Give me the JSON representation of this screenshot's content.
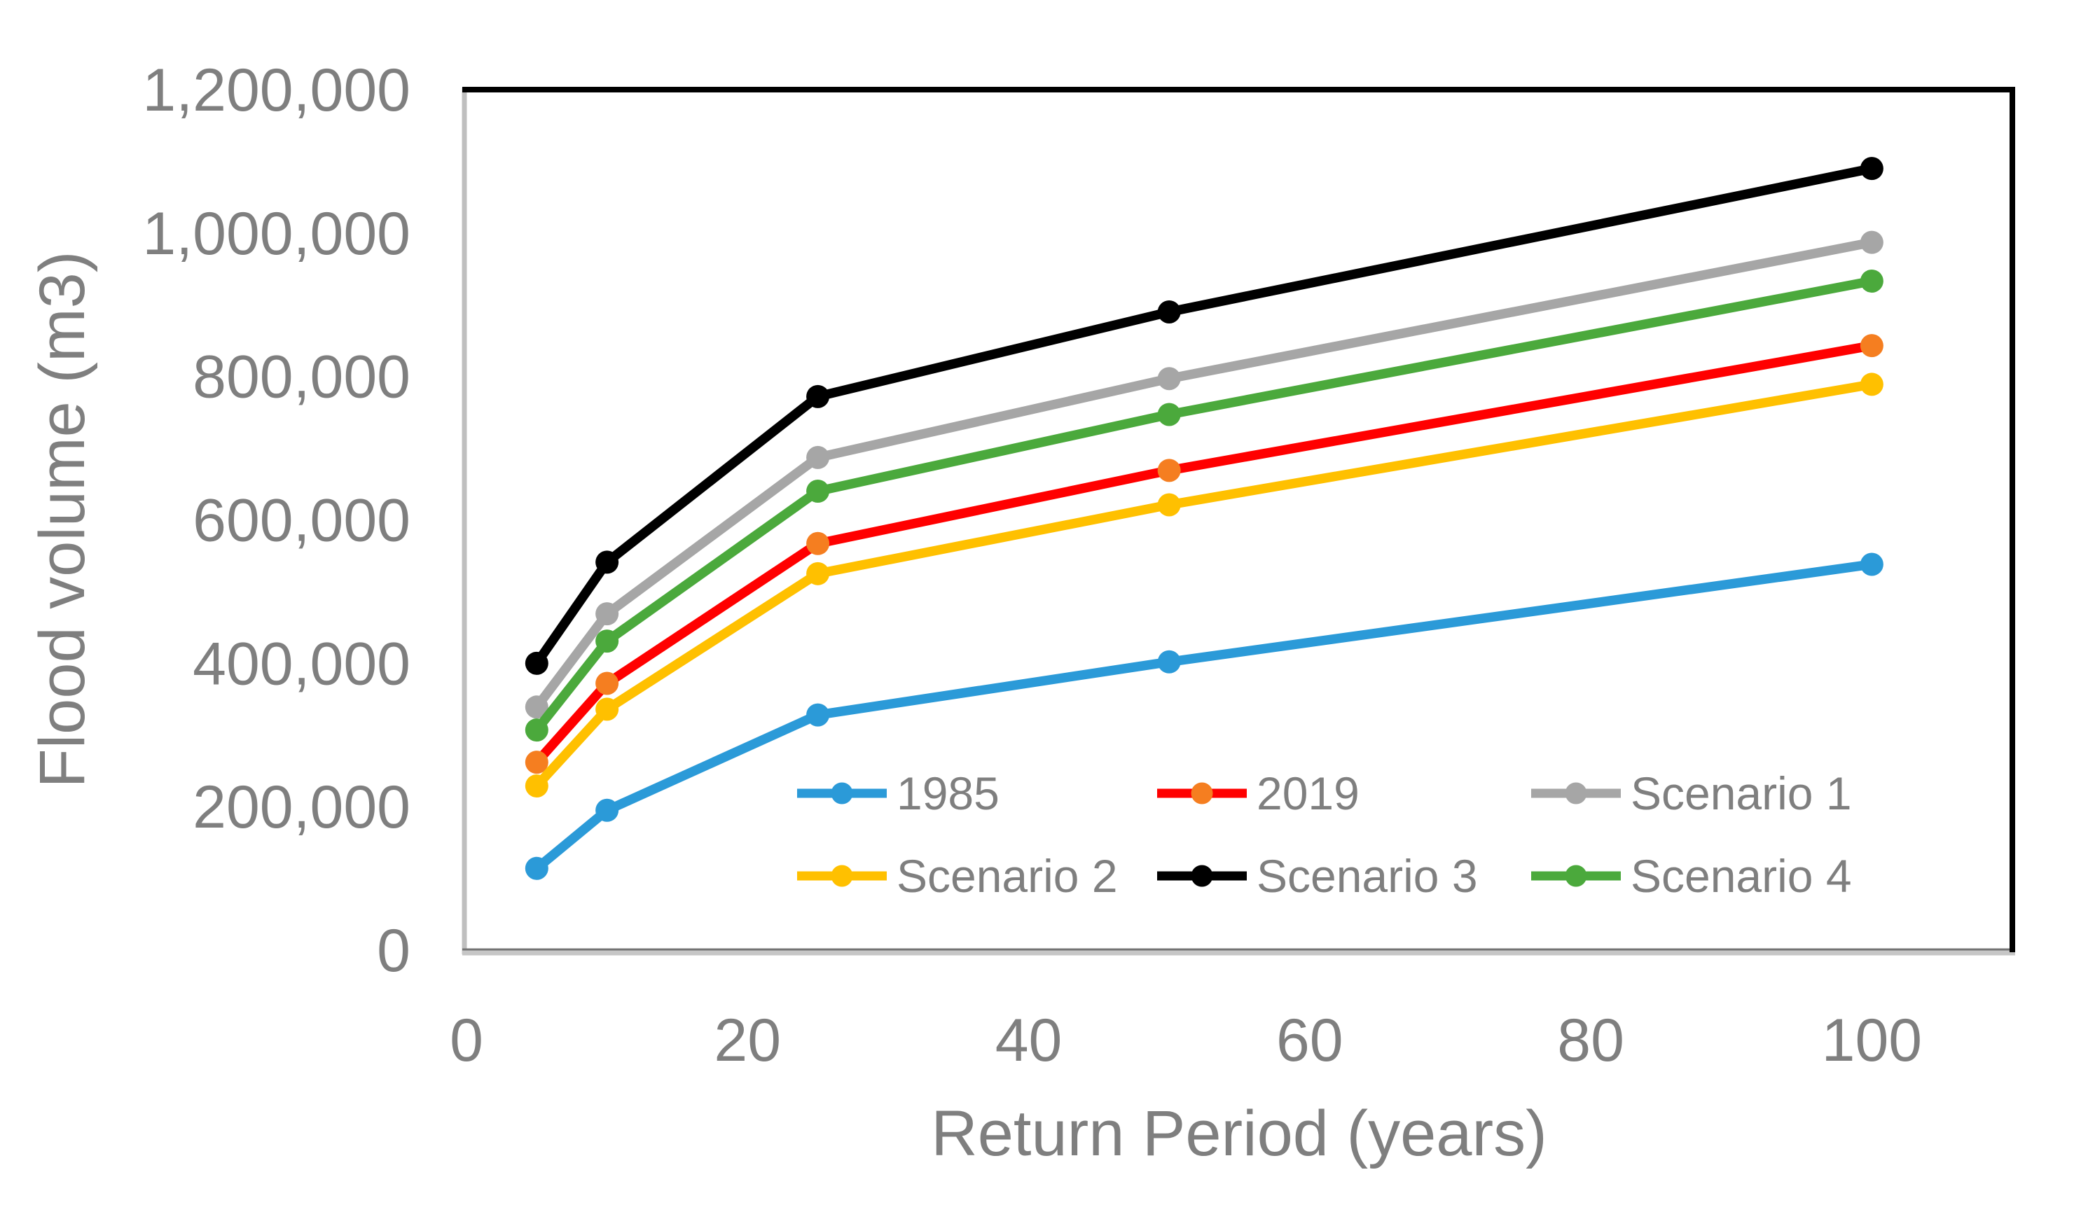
{
  "figure": {
    "background": "#ffffff",
    "text_color": "#7f7f7f"
  },
  "chart_data": {
    "type": "line",
    "title": "",
    "xlabel": "Return Period (years)",
    "ylabel": "Flood volume (m3)",
    "x": [
      5,
      10,
      25,
      50,
      100
    ],
    "series": [
      {
        "name": "1985",
        "color": "#2B9AD8",
        "marker_color": "#2B9AD8",
        "values": [
          114000,
          195000,
          328000,
          402000,
          538000
        ]
      },
      {
        "name": "2019",
        "color": "#FF0000",
        "marker_color": "#F57E20",
        "values": [
          262000,
          372000,
          567000,
          669000,
          843000
        ]
      },
      {
        "name": "Scenario 1",
        "color": "#A6A6A6",
        "marker_color": "#A6A6A6",
        "values": [
          339000,
          469000,
          687000,
          797000,
          987000
        ]
      },
      {
        "name": "Scenario 2",
        "color": "#FFC000",
        "marker_color": "#FFC000",
        "values": [
          229000,
          336000,
          525000,
          621000,
          789000
        ]
      },
      {
        "name": "Scenario 3",
        "color": "#000000",
        "marker_color": "#000000",
        "values": [
          400000,
          541000,
          772000,
          890000,
          1090000
        ]
      },
      {
        "name": "Scenario 4",
        "color": "#4BA93C",
        "marker_color": "#4BA93C",
        "values": [
          307000,
          431000,
          640000,
          747000,
          933000
        ]
      }
    ],
    "xlim": [
      0,
      110
    ],
    "ylim": [
      0,
      1200000
    ],
    "x_ticks": [
      0,
      20,
      40,
      60,
      80,
      100
    ],
    "x_tick_labels": [
      "0",
      "20",
      "40",
      "60",
      "80",
      "100"
    ],
    "y_ticks": [
      0,
      200000,
      400000,
      600000,
      800000,
      1000000,
      1200000
    ],
    "y_tick_labels": [
      "0",
      "200,000",
      "400,000",
      "600,000",
      "800,000",
      "1,000,000",
      "1,200,000"
    ],
    "grid": false,
    "legend": {
      "position": "inside-bottom",
      "rows": [
        [
          "1985",
          "2019",
          "Scenario 1"
        ],
        [
          "Scenario 2",
          "Scenario 3",
          "Scenario 4"
        ]
      ]
    },
    "plot_border": {
      "top_color": "#000000",
      "right_color": "#000000",
      "left_color": "#BFBFBF",
      "bottom_color": "#C6C6C6",
      "bottom_inner_color": "#737373"
    }
  }
}
